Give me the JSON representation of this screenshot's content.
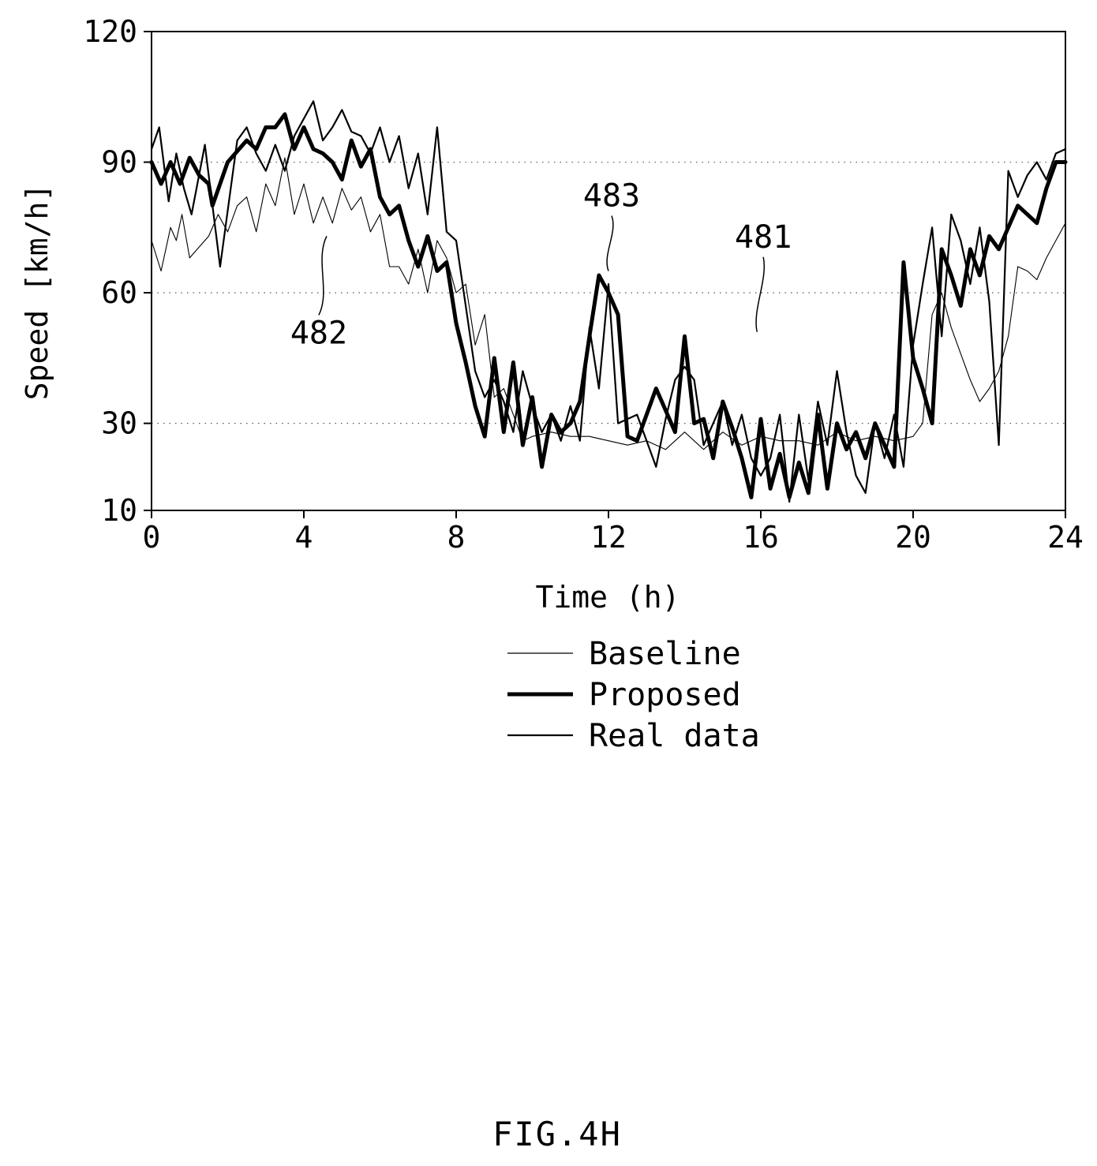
{
  "figure": {
    "caption": "FIG.4H"
  },
  "chart_data": {
    "type": "line",
    "xlabel": "Time (h)",
    "ylabel": "Speed [km/h]",
    "xlim": [
      0,
      24
    ],
    "ylim": [
      10,
      120
    ],
    "xticks": [
      0,
      4,
      8,
      12,
      16,
      20,
      24
    ],
    "yticks": [
      10,
      30,
      60,
      90,
      120
    ],
    "ygrid": [
      30,
      60,
      90
    ],
    "grid": "dotted horizontal at 30, 60, 90",
    "legend_position": "below-center",
    "series": [
      {
        "name": "Baseline",
        "style": "thin",
        "x": [
          0,
          0.25,
          0.5,
          0.65,
          0.8,
          1.0,
          1.2,
          1.5,
          1.75,
          2.0,
          2.25,
          2.5,
          2.75,
          3.0,
          3.25,
          3.5,
          3.75,
          4.0,
          4.25,
          4.5,
          4.75,
          5.0,
          5.25,
          5.5,
          5.75,
          6.0,
          6.25,
          6.5,
          6.75,
          7.0,
          7.25,
          7.5,
          7.75,
          8.0,
          8.25,
          8.5,
          8.75,
          9.0,
          9.25,
          9.5,
          9.75,
          10.0,
          10.5,
          11.0,
          11.5,
          12.0,
          12.5,
          13.0,
          13.5,
          14.0,
          14.5,
          15.0,
          15.5,
          16.0,
          16.5,
          17.0,
          17.5,
          18.0,
          18.5,
          19.0,
          19.5,
          20.0,
          20.25,
          20.5,
          20.75,
          21.0,
          21.25,
          21.5,
          21.75,
          22.0,
          22.25,
          22.5,
          22.75,
          23.0,
          23.25,
          23.5,
          23.75,
          24.0
        ],
        "y": [
          72,
          65,
          75,
          72,
          78,
          68,
          70,
          73,
          78,
          74,
          80,
          82,
          74,
          85,
          80,
          91,
          78,
          85,
          76,
          82,
          76,
          84,
          79,
          82,
          74,
          78,
          66,
          66,
          62,
          70,
          60,
          72,
          68,
          60,
          62,
          48,
          55,
          36,
          38,
          32,
          26,
          27,
          28,
          27,
          27,
          26,
          25,
          26,
          24,
          28,
          24,
          28,
          25,
          27,
          26,
          26,
          25,
          28,
          26,
          27,
          26,
          27,
          30,
          55,
          60,
          52,
          46,
          40,
          35,
          38,
          42,
          50,
          66,
          65,
          63,
          68,
          72,
          76
        ]
      },
      {
        "name": "Proposed",
        "style": "thick",
        "x": [
          0,
          0.25,
          0.5,
          0.75,
          1.0,
          1.25,
          1.5,
          1.6,
          2.0,
          2.5,
          2.75,
          3.0,
          3.25,
          3.5,
          3.75,
          4.0,
          4.25,
          4.5,
          4.75,
          5.0,
          5.25,
          5.5,
          5.75,
          6.0,
          6.25,
          6.5,
          6.75,
          7.0,
          7.25,
          7.5,
          7.75,
          8.0,
          8.25,
          8.5,
          8.75,
          9.0,
          9.25,
          9.5,
          9.75,
          10.0,
          10.25,
          10.5,
          10.75,
          11.0,
          11.25,
          11.5,
          11.75,
          12.0,
          12.25,
          12.5,
          12.75,
          13.0,
          13.25,
          13.5,
          13.75,
          14.0,
          14.25,
          14.5,
          14.75,
          15.0,
          15.25,
          15.5,
          15.75,
          16.0,
          16.25,
          16.5,
          16.75,
          17.0,
          17.25,
          17.5,
          17.75,
          18.0,
          18.25,
          18.5,
          18.75,
          19.0,
          19.25,
          19.5,
          19.75,
          20.0,
          20.25,
          20.5,
          20.75,
          21.0,
          21.25,
          21.5,
          21.75,
          22.0,
          22.25,
          22.5,
          22.75,
          23.0,
          23.25,
          23.5,
          23.75,
          24.0
        ],
        "y": [
          90,
          85,
          90,
          85,
          91,
          87,
          85,
          80,
          90,
          95,
          93,
          98,
          98,
          101,
          93,
          98,
          93,
          92,
          90,
          86,
          95,
          89,
          93,
          82,
          78,
          80,
          72,
          66,
          73,
          65,
          67,
          53,
          44,
          34,
          27,
          45,
          28,
          44,
          25,
          36,
          20,
          32,
          28,
          30,
          35,
          50,
          64,
          60,
          55,
          27,
          26,
          32,
          38,
          33,
          28,
          50,
          30,
          31,
          22,
          35,
          29,
          22,
          13,
          31,
          15,
          23,
          13,
          21,
          14,
          32,
          15,
          30,
          24,
          28,
          22,
          30,
          25,
          20,
          67,
          45,
          38,
          30,
          70,
          64,
          57,
          70,
          64,
          73,
          70,
          75,
          80,
          78,
          76,
          84,
          90,
          90
        ]
      },
      {
        "name": "Real data",
        "style": "medium",
        "x": [
          0,
          0.2,
          0.45,
          0.65,
          0.85,
          1.05,
          1.4,
          1.8,
          2.25,
          2.5,
          2.75,
          3.0,
          3.25,
          3.5,
          3.75,
          4.0,
          4.25,
          4.5,
          4.75,
          5.0,
          5.25,
          5.5,
          5.75,
          6.0,
          6.25,
          6.5,
          6.75,
          7.0,
          7.25,
          7.5,
          7.75,
          8.0,
          8.25,
          8.5,
          8.75,
          9.0,
          9.25,
          9.5,
          9.75,
          10.0,
          10.25,
          10.5,
          10.75,
          11.0,
          11.25,
          11.5,
          11.75,
          12.0,
          12.25,
          12.5,
          12.75,
          13.0,
          13.25,
          13.5,
          13.75,
          14.0,
          14.25,
          14.5,
          14.75,
          15.0,
          15.25,
          15.5,
          15.75,
          16.0,
          16.25,
          16.5,
          16.75,
          17.0,
          17.25,
          17.5,
          17.75,
          18.0,
          18.25,
          18.5,
          18.75,
          19.0,
          19.25,
          19.5,
          19.75,
          20.0,
          20.25,
          20.5,
          20.75,
          21.0,
          21.25,
          21.5,
          21.75,
          22.0,
          22.25,
          22.5,
          22.75,
          23.0,
          23.25,
          23.5,
          23.75,
          24.0
        ],
        "y": [
          93,
          98,
          81,
          92,
          84,
          78,
          94,
          66,
          95,
          98,
          92,
          88,
          94,
          88,
          96,
          100,
          104,
          95,
          98,
          102,
          97,
          96,
          92,
          98,
          90,
          96,
          84,
          92,
          78,
          98,
          74,
          72,
          57,
          42,
          36,
          40,
          35,
          28,
          42,
          34,
          28,
          32,
          26,
          34,
          26,
          52,
          38,
          62,
          30,
          31,
          32,
          26,
          20,
          31,
          40,
          43,
          40,
          25,
          30,
          35,
          25,
          32,
          22,
          18,
          22,
          32,
          12,
          32,
          17,
          35,
          25,
          42,
          28,
          18,
          14,
          30,
          22,
          32,
          20,
          48,
          62,
          75,
          50,
          78,
          72,
          62,
          75,
          58,
          25,
          88,
          82,
          87,
          90,
          86,
          92,
          93
        ]
      }
    ],
    "annotations": [
      {
        "label": "481",
        "series": "Real data",
        "at_x": 15.9,
        "at_y": 51
      },
      {
        "label": "482",
        "series": "Baseline",
        "at_x": 4.6,
        "at_y": 73
      },
      {
        "label": "483",
        "series": "Proposed",
        "at_x": 12.0,
        "at_y": 65
      }
    ]
  }
}
